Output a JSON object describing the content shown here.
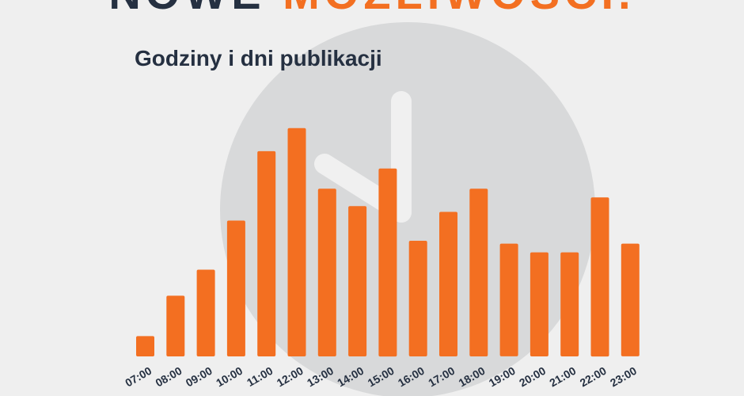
{
  "header": {
    "title_part1": "NOWE",
    "title_part2": "MOŻLIWOŚCI."
  },
  "chart_data": {
    "type": "bar",
    "title": "Godziny i dni publikacji",
    "categories": [
      "07:00",
      "08:00",
      "09:00",
      "10:00",
      "11:00",
      "12:00",
      "13:00",
      "14:00",
      "15:00",
      "16:00",
      "17:00",
      "18:00",
      "19:00",
      "20:00",
      "21:00",
      "22:00",
      "23:00"
    ],
    "values": [
      7,
      21,
      30,
      47,
      71,
      79,
      58,
      52,
      65,
      40,
      50,
      58,
      39,
      36,
      36,
      55,
      39
    ],
    "xlabel": "",
    "ylabel": "",
    "ylim": [
      0,
      80
    ],
    "grid": false,
    "legend": "none",
    "bar_color": "#f36f21",
    "background_icon": "clock-icon",
    "background_icon_color": "#d8d9da"
  }
}
